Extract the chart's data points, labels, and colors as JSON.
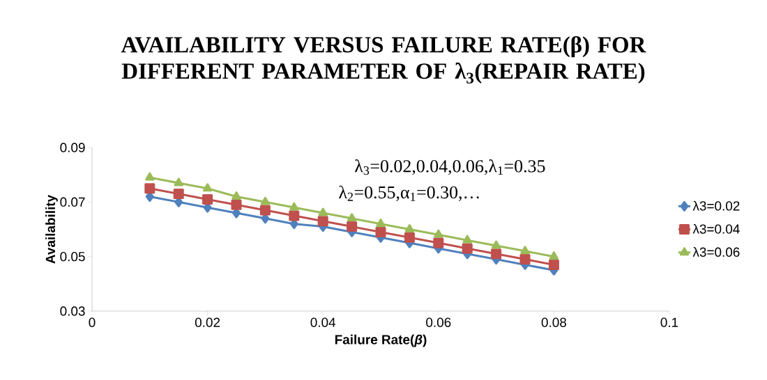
{
  "chart_data": {
    "type": "line",
    "title": "AVAILABILITY VERSUS FAILURE RATE(β) FOR DIFFERENT PARAMETER OF λ$_{3}$(REPAIR RATE)",
    "xlabel": "Failure Rate(*β*)",
    "ylabel": "Availability",
    "annotations": [
      "λ$_{3}$=0.02,0.04,0.06,λ$_{1}$=0.35",
      "λ$_{2}$=0.55,α$_{1}$=0.30,…"
    ],
    "x": [
      0.01,
      0.015,
      0.02,
      0.025,
      0.03,
      0.035,
      0.04,
      0.045,
      0.05,
      0.055,
      0.06,
      0.065,
      0.07,
      0.075,
      0.08
    ],
    "series": [
      {
        "name": "λ3=0.02",
        "color": "#4f81bd",
        "marker": "diamond",
        "values": [
          0.072,
          0.07,
          0.068,
          0.066,
          0.064,
          0.062,
          0.061,
          0.059,
          0.057,
          0.055,
          0.053,
          0.051,
          0.049,
          0.047,
          0.045
        ]
      },
      {
        "name": "λ3=0.04",
        "color": "#c0504d",
        "marker": "square",
        "values": [
          0.075,
          0.073,
          0.071,
          0.069,
          0.067,
          0.065,
          0.063,
          0.061,
          0.059,
          0.057,
          0.055,
          0.053,
          0.051,
          0.049,
          0.047
        ]
      },
      {
        "name": "λ3=0.06",
        "color": "#9bbb59",
        "marker": "triangle",
        "values": [
          0.079,
          0.077,
          0.075,
          0.072,
          0.07,
          0.068,
          0.066,
          0.064,
          0.062,
          0.06,
          0.058,
          0.056,
          0.054,
          0.052,
          0.05
        ]
      }
    ],
    "xlim": [
      0,
      0.1
    ],
    "xticks": [
      0,
      0.02,
      0.04,
      0.06,
      0.08,
      0.1
    ],
    "ylim": [
      0.03,
      0.09
    ],
    "yticks": [
      0.03,
      0.05,
      0.07,
      0.09
    ],
    "grid": false,
    "legend": "right",
    "line_style": "solid"
  }
}
